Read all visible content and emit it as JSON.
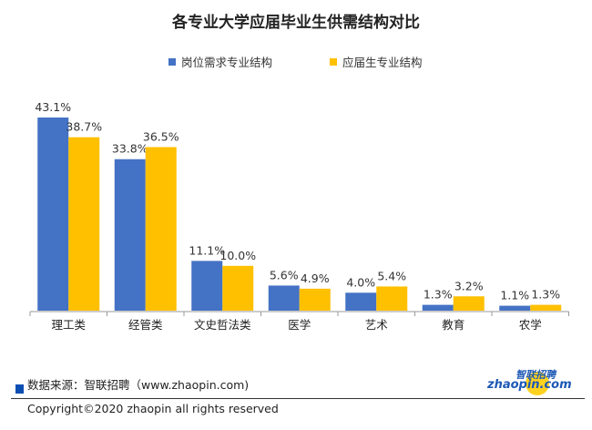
{
  "chart_data": {
    "type": "bar",
    "title": "各专业大学应届毕业生供需结构对比",
    "categories": [
      "理工类",
      "经管类",
      "文史哲法类",
      "医学",
      "艺术",
      "教育",
      "农学"
    ],
    "series": [
      {
        "name": "岗位需求专业结构",
        "color": "#4472C4",
        "values": [
          43.1,
          33.8,
          11.1,
          5.6,
          4.0,
          1.3,
          1.1
        ],
        "labels": [
          "43.1%",
          "33.8%",
          "11.1%",
          "5.6%",
          "4.0%",
          "1.3%",
          "1.1%"
        ]
      },
      {
        "name": "应届生专业结构",
        "color": "#FFC000",
        "values": [
          38.7,
          36.5,
          10.0,
          4.9,
          5.4,
          3.2,
          1.3
        ],
        "labels": [
          "38.7%",
          "36.5%",
          "10.0%",
          "4.9%",
          "5.4%",
          "3.2%",
          "1.3%"
        ]
      }
    ],
    "ylim": [
      0,
      45
    ],
    "grid": false,
    "legend_position": "top"
  },
  "footer": {
    "source": "数据来源：智联招聘（www.zhaopin.com)",
    "copyright": "Copyright©2020 zhaopin all rights reserved",
    "logo_en": "zhaopin.com",
    "logo_cn": "智联招聘"
  }
}
